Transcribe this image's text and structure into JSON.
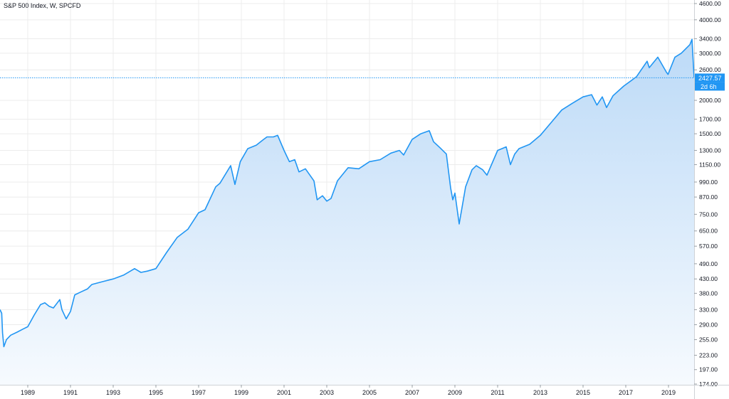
{
  "title": "S&P 500 Index, W, SPCFD",
  "colors": {
    "line": "#2196f3",
    "fill_top": "#bcdaf7",
    "fill_bottom": "#f6fafe",
    "grid": "#ececec",
    "axis_text": "#131722",
    "price_badge": "#2196f3"
  },
  "price_label": {
    "value": "2427.57",
    "countdown": "2d 6h"
  },
  "chart_data": {
    "type": "area",
    "title": "S&P 500 Index, W, SPCFD",
    "xlabel": "",
    "ylabel": "",
    "scale": "log",
    "grid": true,
    "xlim": [
      1987.7,
      2020.2
    ],
    "ylim": [
      174,
      4600
    ],
    "x_ticks": [
      "1989",
      "1991",
      "1993",
      "1995",
      "1997",
      "1999",
      "2001",
      "2003",
      "2005",
      "2007",
      "2009",
      "2011",
      "2013",
      "2015",
      "2017",
      "2019"
    ],
    "y_ticks": [
      "4600.00",
      "4000.00",
      "3400.00",
      "3000.00",
      "2600.00",
      "2427.57",
      "2000.00",
      "1700.00",
      "1500.00",
      "1300.00",
      "1150.00",
      "990.00",
      "870.00",
      "750.00",
      "650.00",
      "570.00",
      "490.00",
      "430.00",
      "380.00",
      "330.00",
      "290.00",
      "255.00",
      "223.00",
      "197.00",
      "174.00"
    ],
    "series": [
      {
        "x": [
          1987.7,
          1987.78,
          1987.82,
          1987.88,
          1988.0,
          1988.2,
          1988.5,
          1988.8,
          1989.0,
          1989.3,
          1989.6,
          1989.8,
          1990.0,
          1990.2,
          1990.5,
          1990.6,
          1990.8,
          1991.0,
          1991.2,
          1991.5,
          1991.8,
          1992.0,
          1992.5,
          1993.0,
          1993.5,
          1994.0,
          1994.3,
          1994.6,
          1995.0,
          1995.5,
          1996.0,
          1996.5,
          1997.0,
          1997.3,
          1997.8,
          1998.0,
          1998.5,
          1998.7,
          1998.95,
          1999.3,
          1999.7,
          2000.0,
          2000.2,
          2000.5,
          2000.7,
          2001.0,
          2001.25,
          2001.5,
          2001.7,
          2002.0,
          2002.4,
          2002.55,
          2002.8,
          2003.0,
          2003.2,
          2003.5,
          2004.0,
          2004.5,
          2005.0,
          2005.5,
          2006.0,
          2006.4,
          2006.6,
          2007.0,
          2007.4,
          2007.8,
          2008.0,
          2008.3,
          2008.6,
          2008.8,
          2008.9,
          2009.0,
          2009.2,
          2009.5,
          2009.8,
          2010.0,
          2010.3,
          2010.5,
          2011.0,
          2011.4,
          2011.6,
          2011.8,
          2012.0,
          2012.5,
          2013.0,
          2013.5,
          2014.0,
          2014.5,
          2015.0,
          2015.4,
          2015.65,
          2015.9,
          2016.1,
          2016.4,
          2016.9,
          2017.5,
          2018.0,
          2018.1,
          2018.5,
          2018.9,
          2018.98,
          2019.3,
          2019.6,
          2020.0,
          2020.1,
          2020.2
        ],
        "y": [
          330,
          320,
          270,
          240,
          255,
          265,
          272,
          280,
          285,
          315,
          345,
          350,
          340,
          335,
          360,
          330,
          305,
          325,
          375,
          385,
          395,
          410,
          420,
          430,
          445,
          470,
          455,
          460,
          470,
          540,
          615,
          660,
          760,
          780,
          950,
          980,
          1140,
          970,
          1180,
          1320,
          1360,
          1420,
          1460,
          1460,
          1480,
          1300,
          1180,
          1200,
          1080,
          1110,
          1000,
          850,
          880,
          840,
          860,
          1000,
          1120,
          1110,
          1180,
          1200,
          1270,
          1300,
          1250,
          1430,
          1500,
          1540,
          1400,
          1330,
          1260,
          940,
          850,
          900,
          690,
          950,
          1100,
          1140,
          1100,
          1050,
          1300,
          1340,
          1150,
          1260,
          1320,
          1370,
          1480,
          1650,
          1840,
          1950,
          2060,
          2100,
          1920,
          2060,
          1880,
          2080,
          2260,
          2450,
          2800,
          2650,
          2900,
          2550,
          2500,
          2900,
          3000,
          3230,
          3380,
          2427
        ]
      }
    ]
  }
}
